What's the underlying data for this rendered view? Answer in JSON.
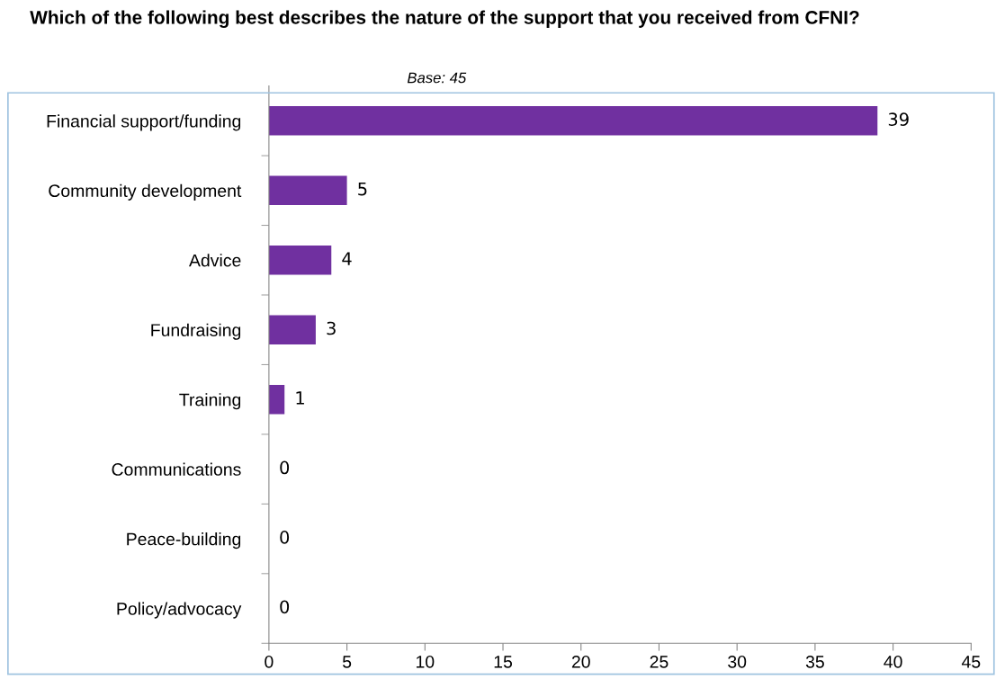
{
  "chart_data": {
    "type": "bar",
    "orientation": "horizontal",
    "title": "Which of the following best describes the nature of the support that you received from CFNI?",
    "categories": [
      "Financial support/funding",
      "Community development",
      "Advice",
      "Fundraising",
      "Training",
      "Communications",
      "Peace-building",
      "Policy/advocacy"
    ],
    "values": [
      39,
      5,
      4,
      3,
      1,
      0,
      0,
      0
    ],
    "color": "#7030a0",
    "xlim": [
      0,
      45
    ],
    "xticks": [
      0,
      5,
      10,
      15,
      20,
      25,
      30,
      35,
      40,
      45
    ],
    "grid": false,
    "data_labels": true,
    "annotations": [
      "Base: 45"
    ]
  }
}
